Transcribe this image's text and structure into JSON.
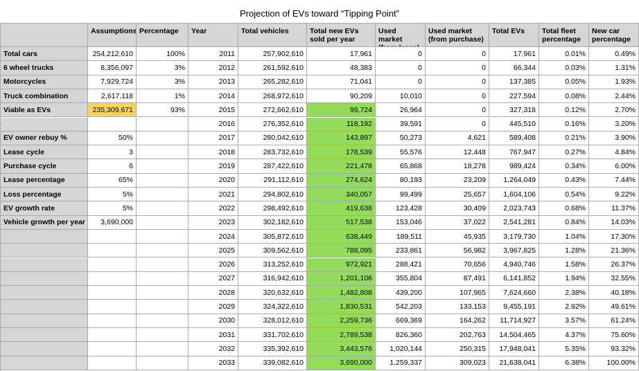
{
  "title": "Projection of EVs toward “Tipping Point”",
  "table": {
    "header": [
      null,
      "Assumptions",
      "Percentage",
      "Year",
      "Total vehicles",
      "Total new EVs sold per year",
      "Used market (from lease)",
      "Used market (from purchase)",
      "Total EVs",
      "Total fleet percentage",
      "New car percentage"
    ],
    "rows": [
      [
        "Total cars",
        "254,212,610",
        "100%",
        "2011",
        "257,902,610",
        "17,961",
        "0",
        "0",
        "17,961",
        "0.01%",
        "0.49%"
      ],
      [
        "6 wheel trucks",
        "8,356,097",
        "3%",
        "2012",
        "261,592,610",
        "48,383",
        "0",
        "0",
        "66,344",
        "0.03%",
        "1.31%"
      ],
      [
        "Motorcycles",
        "7,929,724",
        "3%",
        "2013",
        "265,282,610",
        "71,041",
        "0",
        "0",
        "137,385",
        "0.05%",
        "1.93%"
      ],
      [
        "Truck combination",
        "2,617,118",
        "1%",
        "2014",
        "268,972,610",
        "90,209",
        "10,010",
        "0",
        "227,594",
        "0.08%",
        "2.44%"
      ],
      [
        "Viable as EVs",
        "235,309,671",
        "93%",
        "2015",
        "272,662,610",
        "99,724",
        "26,964",
        "0",
        "327,318",
        "0.12%",
        "2.70%"
      ],
      [
        null,
        null,
        null,
        "2016",
        "276,352,610",
        "118,192",
        "39,591",
        "0",
        "445,510",
        "0.16%",
        "3.20%"
      ],
      [
        "EV owner rebuy %",
        "50%",
        null,
        "2017",
        "280,042,610",
        "143,897",
        "50,273",
        "4,621",
        "589,408",
        "0.21%",
        "3.90%"
      ],
      [
        "Lease cycle",
        "3",
        null,
        "2018",
        "283,732,610",
        "178,539",
        "55,576",
        "12,448",
        "767,947",
        "0.27%",
        "4.84%"
      ],
      [
        "Purchase cycle",
        "6",
        null,
        "2019",
        "287,422,610",
        "221,478",
        "65,868",
        "18,278",
        "989,424",
        "0.34%",
        "6.00%"
      ],
      [
        "Lease percentage",
        "65%",
        null,
        "2020",
        "291,112,610",
        "274,624",
        "80,193",
        "23,209",
        "1,264,049",
        "0.43%",
        "7.44%"
      ],
      [
        "Loss percentage",
        "5%",
        null,
        "2021",
        "294,802,610",
        "340,057",
        "99,499",
        "25,657",
        "1,604,106",
        "0.54%",
        "9.22%"
      ],
      [
        "EV growth rate",
        "5%",
        null,
        "2022",
        "298,492,610",
        "419,638",
        "123,428",
        "30,409",
        "2,023,743",
        "0.68%",
        "11.37%"
      ],
      [
        "Vehicle growth per year",
        "3,690,000",
        null,
        "2023",
        "302,182,610",
        "517,538",
        "153,046",
        "37,022",
        "2,541,281",
        "0.84%",
        "14.03%"
      ],
      [
        null,
        null,
        null,
        "2024",
        "305,872,610",
        "638,449",
        "189,511",
        "45,935",
        "3,179,730",
        "1.04%",
        "17.30%"
      ],
      [
        null,
        null,
        null,
        "2025",
        "309,562,610",
        "788,095",
        "233,861",
        "56,982",
        "3,967,825",
        "1.28%",
        "21.36%"
      ],
      [
        null,
        null,
        null,
        "2026",
        "313,252,610",
        "972,921",
        "288,421",
        "70,656",
        "4,940,746",
        "1.58%",
        "26.37%"
      ],
      [
        null,
        null,
        null,
        "2027",
        "316,942,610",
        "1,201,106",
        "355,804",
        "87,491",
        "6,141,852",
        "1.94%",
        "32.55%"
      ],
      [
        null,
        null,
        null,
        "2028",
        "320,632,610",
        "1,482,808",
        "439,200",
        "107,965",
        "7,624,660",
        "2.38%",
        "40.18%"
      ],
      [
        null,
        null,
        null,
        "2029",
        "324,322,610",
        "1,830,531",
        "542,203",
        "133,153",
        "9,455,191",
        "2.92%",
        "49.61%"
      ],
      [
        null,
        null,
        null,
        "2030",
        "328,012,610",
        "2,259,736",
        "669,369",
        "164,262",
        "11,714,927",
        "3.57%",
        "61.24%"
      ],
      [
        null,
        null,
        null,
        "2031",
        "331,702,610",
        "2,789,538",
        "826,360",
        "202,763",
        "14,504,465",
        "4.37%",
        "75.60%"
      ],
      [
        null,
        null,
        null,
        "2032",
        "335,392,610",
        "3,443,576",
        "1,020,144",
        "250,315",
        "17,948,041",
        "5.35%",
        "93.32%"
      ],
      [
        null,
        null,
        null,
        "2033",
        "339,082,610",
        "3,690,000",
        "1,259,337",
        "309,023",
        "21,638,041",
        "6.38%",
        "100.00%"
      ]
    ]
  }
}
